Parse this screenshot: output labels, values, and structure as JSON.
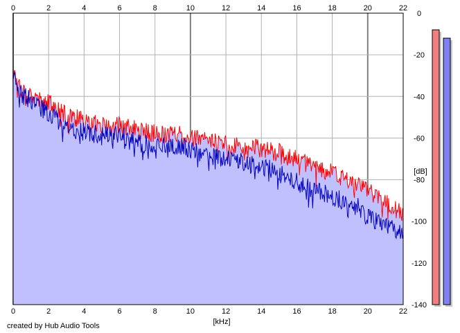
{
  "chart_data": {
    "type": "area",
    "xlabel": "[kHz]",
    "ylabel": "[dB]",
    "x_ticks": [
      0,
      2,
      4,
      6,
      8,
      10,
      12,
      14,
      16,
      18,
      20,
      22
    ],
    "y_ticks": [
      0,
      -20,
      -40,
      -60,
      -80,
      -100,
      -120,
      -140
    ],
    "xlim": [
      0,
      22
    ],
    "ylim": [
      -140,
      0
    ],
    "grid": true,
    "series": [
      {
        "color": "#ff0000",
        "x": [
          0,
          0.3,
          0.6,
          1,
          1.5,
          2,
          2.5,
          3,
          3.5,
          4,
          4.5,
          5,
          5.5,
          6,
          6.5,
          7,
          7.5,
          8,
          8.5,
          9,
          9.5,
          10,
          10.5,
          11,
          11.5,
          12,
          12.5,
          13,
          13.5,
          14,
          14.5,
          15,
          15.5,
          16,
          16.5,
          17,
          17.5,
          18,
          18.5,
          19,
          19.5,
          20,
          20.5,
          21,
          21.5,
          22
        ],
        "values": [
          -28,
          -33,
          -37,
          -39,
          -41,
          -43,
          -46,
          -49,
          -50,
          -52,
          -53,
          -54,
          -54,
          -54,
          -55,
          -56,
          -57,
          -58,
          -58,
          -58,
          -58,
          -59,
          -61,
          -61,
          -62,
          -63,
          -64,
          -64,
          -64,
          -65,
          -66,
          -67,
          -69,
          -70,
          -72,
          -73,
          -75,
          -77,
          -79,
          -81,
          -83,
          -85,
          -88,
          -91,
          -94,
          -97
        ]
      },
      {
        "color": "#0000c0",
        "x": [
          0,
          0.3,
          0.6,
          1,
          1.5,
          2,
          2.5,
          3,
          3.5,
          4,
          4.5,
          5,
          5.5,
          6,
          6.5,
          7,
          7.5,
          8,
          8.5,
          9,
          9.5,
          10,
          10.5,
          11,
          11.5,
          12,
          12.5,
          13,
          13.5,
          14,
          14.5,
          15,
          15.5,
          16,
          16.5,
          17,
          17.5,
          18,
          18.5,
          19,
          19.5,
          20,
          20.5,
          21,
          21.5,
          22
        ],
        "values": [
          -30,
          -36,
          -40,
          -42,
          -45,
          -48,
          -51,
          -55,
          -56,
          -57,
          -58,
          -59,
          -59,
          -58,
          -61,
          -62,
          -63,
          -64,
          -64,
          -64,
          -64,
          -66,
          -67,
          -68,
          -69,
          -70,
          -71,
          -72,
          -73,
          -74,
          -75,
          -77,
          -79,
          -81,
          -83,
          -85,
          -86,
          -88,
          -90,
          -92,
          -93,
          -97,
          -100,
          -102,
          -103,
          -107
        ]
      }
    ],
    "fill_color": "#c0c0ff",
    "level_meters": [
      {
        "color": "#f08080",
        "value": -8
      },
      {
        "color": "#8080f0",
        "value": -12
      }
    ]
  },
  "footer": {
    "credit": "created by Hub Audio Tools"
  }
}
